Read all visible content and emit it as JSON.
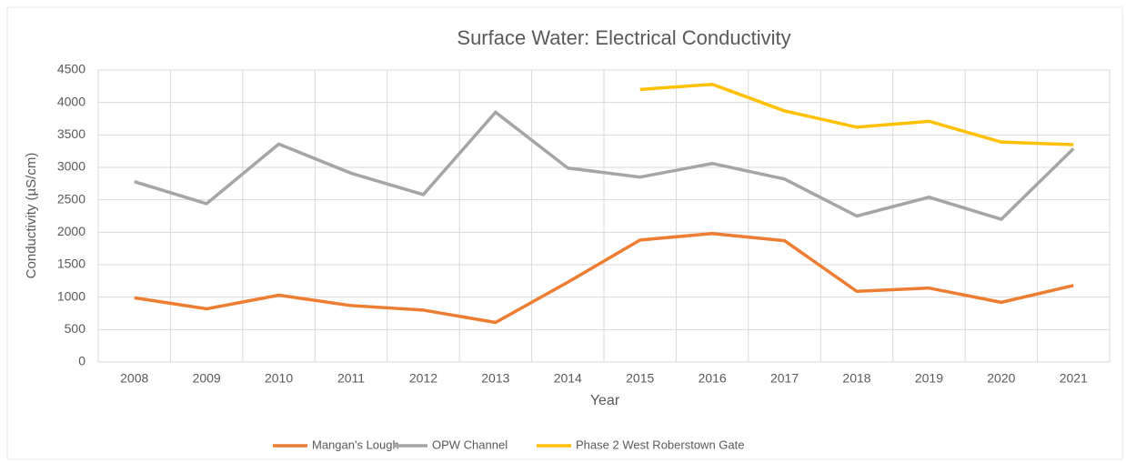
{
  "chart_data": {
    "type": "line",
    "title": "Surface Water: Electrical Conductivity",
    "x_label": "Year",
    "y_label": "Conductivity (µS/cm)",
    "categories": [
      "2008",
      "2009",
      "2010",
      "2011",
      "2012",
      "2013",
      "2014",
      "2015",
      "2016",
      "2017",
      "2018",
      "2019",
      "2020",
      "2021"
    ],
    "series": [
      {
        "name": "Mangan's Lough",
        "color": "#ed7d31",
        "values": [
          990,
          820,
          1030,
          870,
          800,
          610,
          1230,
          1880,
          1980,
          1870,
          1090,
          1140,
          920,
          1180
        ]
      },
      {
        "name": "OPW Channel",
        "color": "#a5a5a5",
        "values": [
          2780,
          2440,
          3360,
          2910,
          2580,
          3850,
          2990,
          2850,
          3060,
          2820,
          2250,
          2540,
          2200,
          3290
        ]
      },
      {
        "name": "Phase 2 West Roberstown Gate",
        "color": "#ffc000",
        "values": [
          null,
          null,
          null,
          null,
          null,
          null,
          null,
          4200,
          4280,
          3870,
          3620,
          3710,
          3390,
          3350
        ]
      }
    ],
    "ylim": [
      0,
      4500
    ],
    "yticks": [
      0,
      500,
      1000,
      1500,
      2000,
      2500,
      3000,
      3500,
      4000,
      4500
    ],
    "grid": true,
    "legend": "bottom"
  }
}
